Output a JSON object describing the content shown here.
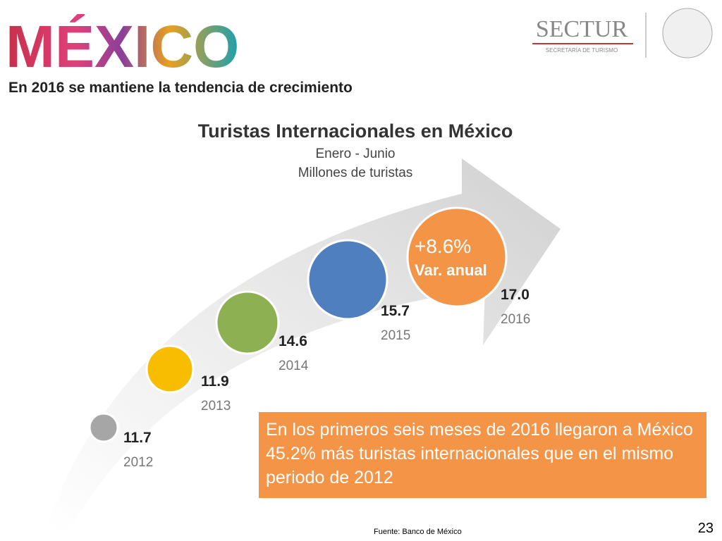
{
  "header": {
    "logo": "MÉXICO",
    "agency": "SECTUR",
    "agency_subtitle": "SECRETARÍA DE TURISMO",
    "headline": "En 2016 se mantiene la tendencia de crecimiento"
  },
  "chart_data": {
    "type": "bubble",
    "title": "Turistas Internacionales en México",
    "subtitle": [
      "Enero - Junio",
      "Millones de turistas"
    ],
    "categories": [
      "2012",
      "2013",
      "2014",
      "2015",
      "2016"
    ],
    "values": [
      11.7,
      11.9,
      14.6,
      15.7,
      17.0
    ],
    "value_labels": [
      "11.7",
      "11.9",
      "14.6",
      "15.7",
      "17.0"
    ],
    "colors": [
      "#a6a6a6",
      "#f9bd00",
      "#8db152",
      "#4f7fbe",
      "#f39447"
    ],
    "annotation": [
      "+8.6%",
      "Var. anual"
    ]
  },
  "callout": "En los primeros seis meses de 2016 llegaron a México 45.2% más turistas internacionales que en el mismo periodo de 2012",
  "footer": {
    "source": "Fuente:  Banco de México",
    "page": "23"
  }
}
